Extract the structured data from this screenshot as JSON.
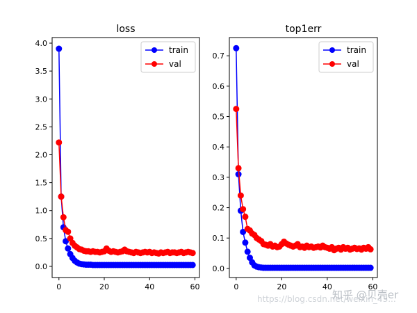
{
  "chart_data": [
    {
      "type": "line",
      "title": "loss",
      "xlabel": "",
      "ylabel": "",
      "xlim": [
        -3,
        62
      ],
      "ylim": [
        -0.2,
        4.1
      ],
      "xticks": [
        0,
        20,
        40,
        60
      ],
      "yticks": [
        0.0,
        0.5,
        1.0,
        1.5,
        2.0,
        2.5,
        3.0,
        3.5,
        4.0
      ],
      "yticklabels": [
        "0.0",
        "0.5",
        "1.0",
        "1.5",
        "2.0",
        "2.5",
        "3.0",
        "3.5",
        "4.0"
      ],
      "legend": "top-right",
      "series": [
        {
          "name": "train",
          "color": "#0000ff",
          "x": [
            0,
            1,
            2,
            3,
            4,
            5,
            6,
            7,
            8,
            9,
            10,
            11,
            12,
            13,
            14,
            15,
            16,
            17,
            18,
            19,
            20,
            21,
            22,
            23,
            24,
            25,
            26,
            27,
            28,
            29,
            30,
            31,
            32,
            33,
            34,
            35,
            36,
            37,
            38,
            39,
            40,
            41,
            42,
            43,
            44,
            45,
            46,
            47,
            48,
            49,
            50,
            51,
            52,
            53,
            54,
            55,
            56,
            57,
            58,
            59
          ],
          "values": [
            3.9,
            1.25,
            0.7,
            0.45,
            0.32,
            0.22,
            0.15,
            0.1,
            0.07,
            0.05,
            0.04,
            0.035,
            0.03,
            0.03,
            0.03,
            0.025,
            0.025,
            0.025,
            0.025,
            0.025,
            0.025,
            0.025,
            0.025,
            0.025,
            0.025,
            0.025,
            0.025,
            0.025,
            0.025,
            0.025,
            0.025,
            0.025,
            0.025,
            0.025,
            0.025,
            0.025,
            0.025,
            0.025,
            0.025,
            0.025,
            0.025,
            0.025,
            0.025,
            0.025,
            0.025,
            0.025,
            0.025,
            0.025,
            0.025,
            0.025,
            0.025,
            0.025,
            0.025,
            0.025,
            0.025,
            0.025,
            0.025,
            0.025,
            0.025,
            0.025
          ]
        },
        {
          "name": "val",
          "color": "#ff0000",
          "x": [
            0,
            1,
            2,
            3,
            4,
            5,
            6,
            7,
            8,
            9,
            10,
            11,
            12,
            13,
            14,
            15,
            16,
            17,
            18,
            19,
            20,
            21,
            22,
            23,
            24,
            25,
            26,
            27,
            28,
            29,
            30,
            31,
            32,
            33,
            34,
            35,
            36,
            37,
            38,
            39,
            40,
            41,
            42,
            43,
            44,
            45,
            46,
            47,
            48,
            49,
            50,
            51,
            52,
            53,
            54,
            55,
            56,
            57,
            58,
            59
          ],
          "values": [
            2.22,
            1.25,
            0.88,
            0.65,
            0.62,
            0.5,
            0.42,
            0.37,
            0.34,
            0.31,
            0.3,
            0.28,
            0.27,
            0.27,
            0.26,
            0.27,
            0.26,
            0.26,
            0.25,
            0.26,
            0.27,
            0.32,
            0.28,
            0.26,
            0.27,
            0.26,
            0.25,
            0.26,
            0.27,
            0.3,
            0.27,
            0.26,
            0.25,
            0.24,
            0.26,
            0.25,
            0.24,
            0.25,
            0.26,
            0.25,
            0.26,
            0.24,
            0.25,
            0.24,
            0.23,
            0.25,
            0.24,
            0.25,
            0.26,
            0.24,
            0.25,
            0.25,
            0.24,
            0.25,
            0.26,
            0.24,
            0.25,
            0.26,
            0.25,
            0.24
          ]
        }
      ]
    },
    {
      "type": "line",
      "title": "top1err",
      "xlabel": "",
      "ylabel": "",
      "xlim": [
        -3,
        62
      ],
      "ylim": [
        -0.03,
        0.76
      ],
      "xticks": [
        0,
        20,
        40,
        60
      ],
      "yticks": [
        0.0,
        0.1,
        0.2,
        0.3,
        0.4,
        0.5,
        0.6,
        0.7
      ],
      "yticklabels": [
        "0.0",
        "0.1",
        "0.2",
        "0.3",
        "0.4",
        "0.5",
        "0.6",
        "0.7"
      ],
      "legend": "top-right",
      "series": [
        {
          "name": "train",
          "color": "#0000ff",
          "x": [
            0,
            1,
            2,
            3,
            4,
            5,
            6,
            7,
            8,
            9,
            10,
            11,
            12,
            13,
            14,
            15,
            16,
            17,
            18,
            19,
            20,
            21,
            22,
            23,
            24,
            25,
            26,
            27,
            28,
            29,
            30,
            31,
            32,
            33,
            34,
            35,
            36,
            37,
            38,
            39,
            40,
            41,
            42,
            43,
            44,
            45,
            46,
            47,
            48,
            49,
            50,
            51,
            52,
            53,
            54,
            55,
            56,
            57,
            58,
            59
          ],
          "values": [
            0.725,
            0.31,
            0.19,
            0.12,
            0.085,
            0.055,
            0.035,
            0.02,
            0.01,
            0.006,
            0.004,
            0.003,
            0.002,
            0.002,
            0.002,
            0.002,
            0.002,
            0.002,
            0.002,
            0.002,
            0.002,
            0.002,
            0.002,
            0.002,
            0.002,
            0.002,
            0.002,
            0.002,
            0.002,
            0.002,
            0.002,
            0.002,
            0.002,
            0.002,
            0.002,
            0.002,
            0.002,
            0.002,
            0.002,
            0.002,
            0.002,
            0.002,
            0.002,
            0.002,
            0.002,
            0.002,
            0.002,
            0.002,
            0.002,
            0.002,
            0.002,
            0.002,
            0.002,
            0.002,
            0.002,
            0.002,
            0.002,
            0.002,
            0.002,
            0.002
          ]
        },
        {
          "name": "val",
          "color": "#ff0000",
          "x": [
            0,
            1,
            2,
            3,
            4,
            5,
            6,
            7,
            8,
            9,
            10,
            11,
            12,
            13,
            14,
            15,
            16,
            17,
            18,
            19,
            20,
            21,
            22,
            23,
            24,
            25,
            26,
            27,
            28,
            29,
            30,
            31,
            32,
            33,
            34,
            35,
            36,
            37,
            38,
            39,
            40,
            41,
            42,
            43,
            44,
            45,
            46,
            47,
            48,
            49,
            50,
            51,
            52,
            53,
            54,
            55,
            56,
            57,
            58,
            59
          ],
          "values": [
            0.525,
            0.33,
            0.24,
            0.195,
            0.17,
            0.13,
            0.125,
            0.115,
            0.11,
            0.1,
            0.095,
            0.09,
            0.08,
            0.078,
            0.075,
            0.08,
            0.072,
            0.075,
            0.07,
            0.072,
            0.08,
            0.088,
            0.082,
            0.078,
            0.075,
            0.072,
            0.075,
            0.08,
            0.07,
            0.072,
            0.068,
            0.075,
            0.07,
            0.072,
            0.068,
            0.07,
            0.072,
            0.069,
            0.075,
            0.07,
            0.068,
            0.065,
            0.07,
            0.06,
            0.065,
            0.068,
            0.062,
            0.07,
            0.065,
            0.068,
            0.062,
            0.065,
            0.068,
            0.064,
            0.066,
            0.062,
            0.068,
            0.065,
            0.07,
            0.063
          ]
        }
      ]
    }
  ],
  "watermark": {
    "site": "https://blog.csdn.net/weixin_43...",
    "zhihu": "知乎 @贝壳er"
  }
}
